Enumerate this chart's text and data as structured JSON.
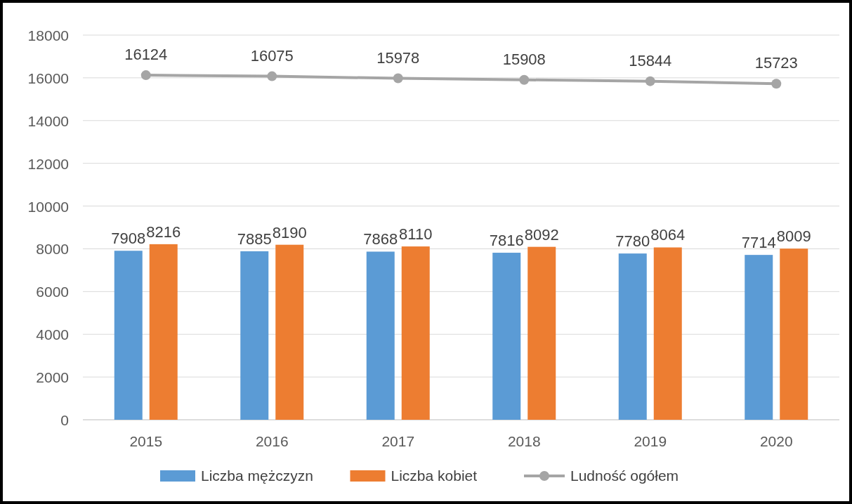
{
  "chart_data": {
    "type": "bar",
    "categories": [
      "2015",
      "2016",
      "2017",
      "2018",
      "2019",
      "2020"
    ],
    "series": [
      {
        "name": "Liczba mężczyzn",
        "color": "#5b9bd5",
        "values": [
          7908,
          7885,
          7868,
          7816,
          7780,
          7714
        ]
      },
      {
        "name": "Liczba kobiet",
        "color": "#ed7d31",
        "values": [
          8216,
          8190,
          8110,
          8092,
          8064,
          8009
        ]
      },
      {
        "name": "Ludność ogółem",
        "type": "line",
        "color": "#a5a5a5",
        "marker": "circle",
        "values": [
          16124,
          16075,
          15978,
          15908,
          15844,
          15723
        ]
      }
    ],
    "ylim": [
      0,
      18000
    ],
    "yticks": [
      0,
      2000,
      4000,
      6000,
      8000,
      10000,
      12000,
      14000,
      16000,
      18000
    ],
    "grid": "y",
    "legend": "bottom",
    "data_labels": true
  }
}
